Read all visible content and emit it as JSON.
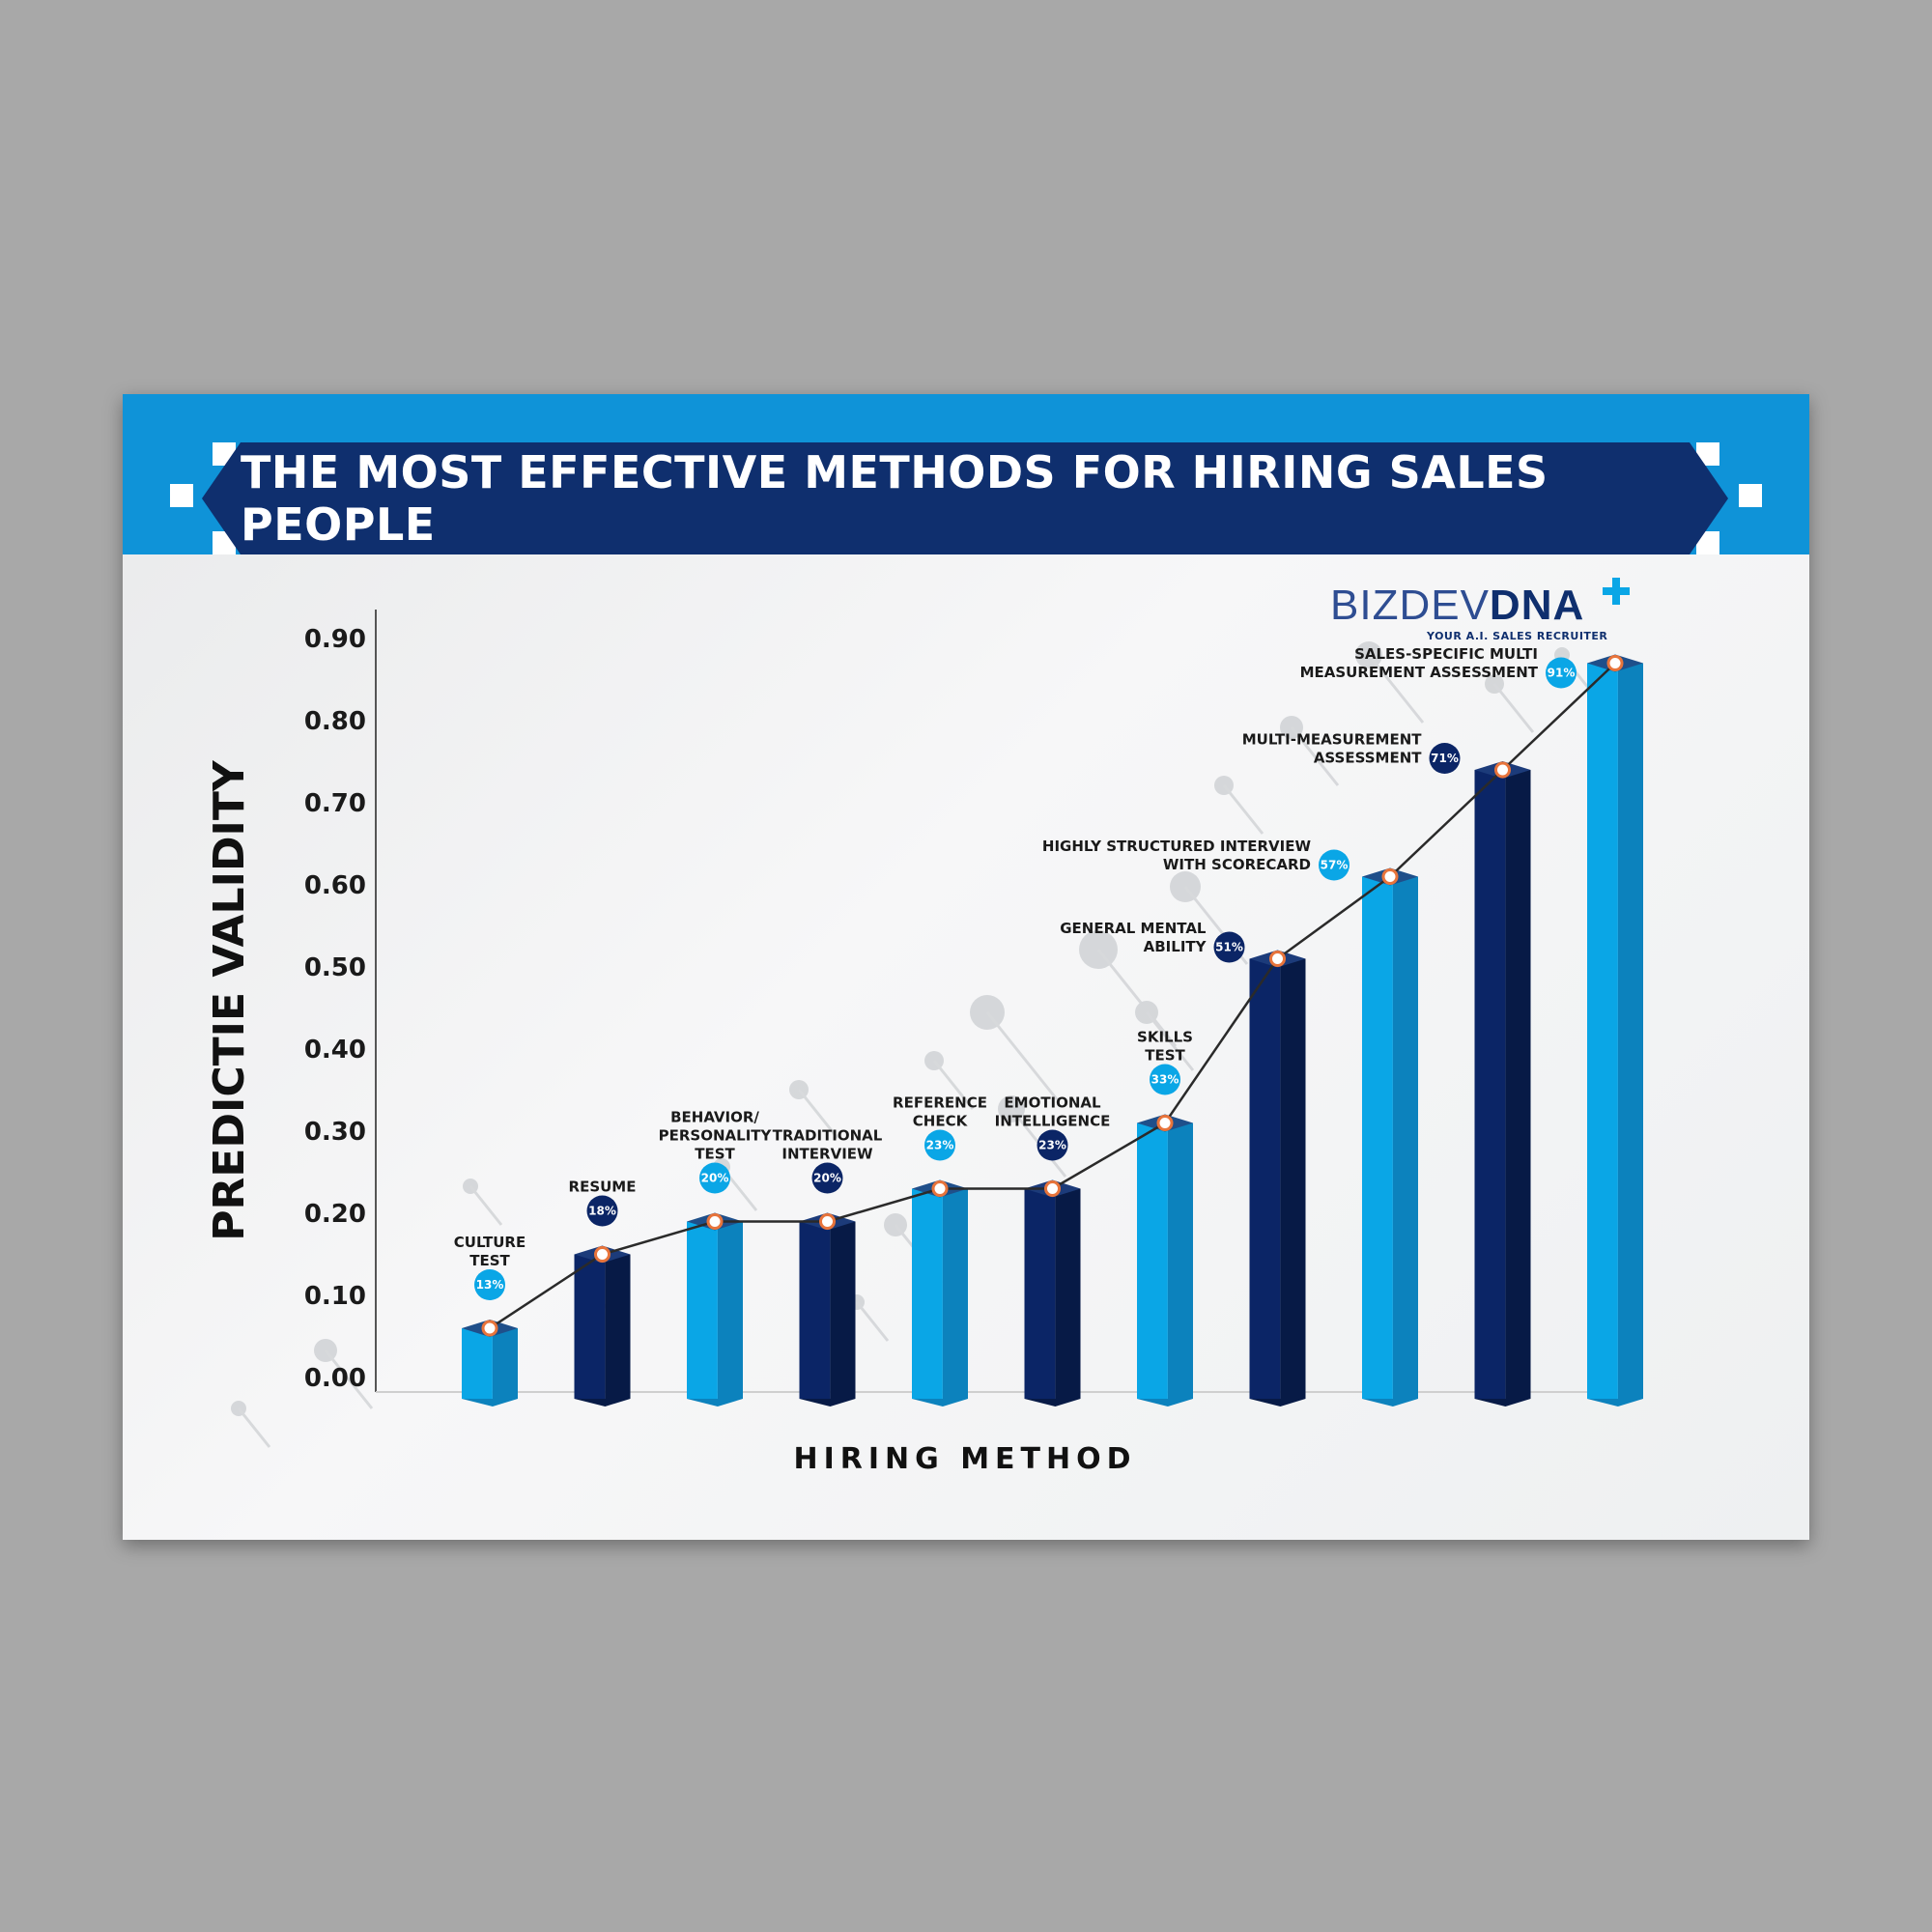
{
  "title": "THE MOST EFFECTIVE METHODS FOR HIRING SALES PEOPLE",
  "logo": {
    "brand_part1": "BIZDEV",
    "brand_part2": "DNA",
    "tagline": "YOUR A.I. SALES RECRUITER"
  },
  "colors": {
    "header_band": "#0f93d8",
    "title_bar": "#0f2f6e",
    "bar_light": "#0aa6e6",
    "bar_dark": "#0b2566",
    "marker": "#e8743b"
  },
  "chart_data": {
    "type": "bar",
    "title": "THE MOST EFFECTIVE METHODS FOR HIRING SALES PEOPLE",
    "xlabel": "HIRING METHOD",
    "ylabel": "PREDICTIE VALIDITY",
    "ylim": [
      0,
      0.9
    ],
    "yticks": [
      "0.00",
      "0.10",
      "0.20",
      "0.30",
      "0.40",
      "0.50",
      "0.60",
      "0.70",
      "0.80",
      "0.90"
    ],
    "grid": false,
    "overlay_line": true,
    "categories": [
      [
        "CULTURE",
        "TEST"
      ],
      [
        "RESUME"
      ],
      [
        "BEHAVIOR/",
        "PERSONALITY",
        "TEST"
      ],
      [
        "TRADITIONAL",
        "INTERVIEW"
      ],
      [
        "REFERENCE",
        "CHECK"
      ],
      [
        "EMOTIONAL",
        "INTELLIGENCE"
      ],
      [
        "SKILLS",
        "TEST"
      ],
      [
        "GENERAL MENTAL",
        "ABILITY"
      ],
      [
        "HIGHLY STRUCTURED INTERVIEW",
        "WITH SCORECARD"
      ],
      [
        "MULTI-MEASUREMENT",
        "ASSESSMENT"
      ],
      [
        "SALES-SPECIFIC MULTI",
        "MEASUREMENT ASSESSMENT"
      ]
    ],
    "values": [
      0.06,
      0.15,
      0.19,
      0.19,
      0.23,
      0.23,
      0.31,
      0.51,
      0.61,
      0.74,
      0.87
    ],
    "percent_labels": [
      "13%",
      "18%",
      "20%",
      "20%",
      "23%",
      "23%",
      "33%",
      "51%",
      "57%",
      "71%",
      "91%"
    ],
    "bar_shades": [
      "light",
      "dark",
      "light",
      "dark",
      "light",
      "dark",
      "light",
      "dark",
      "light",
      "dark",
      "light"
    ]
  }
}
